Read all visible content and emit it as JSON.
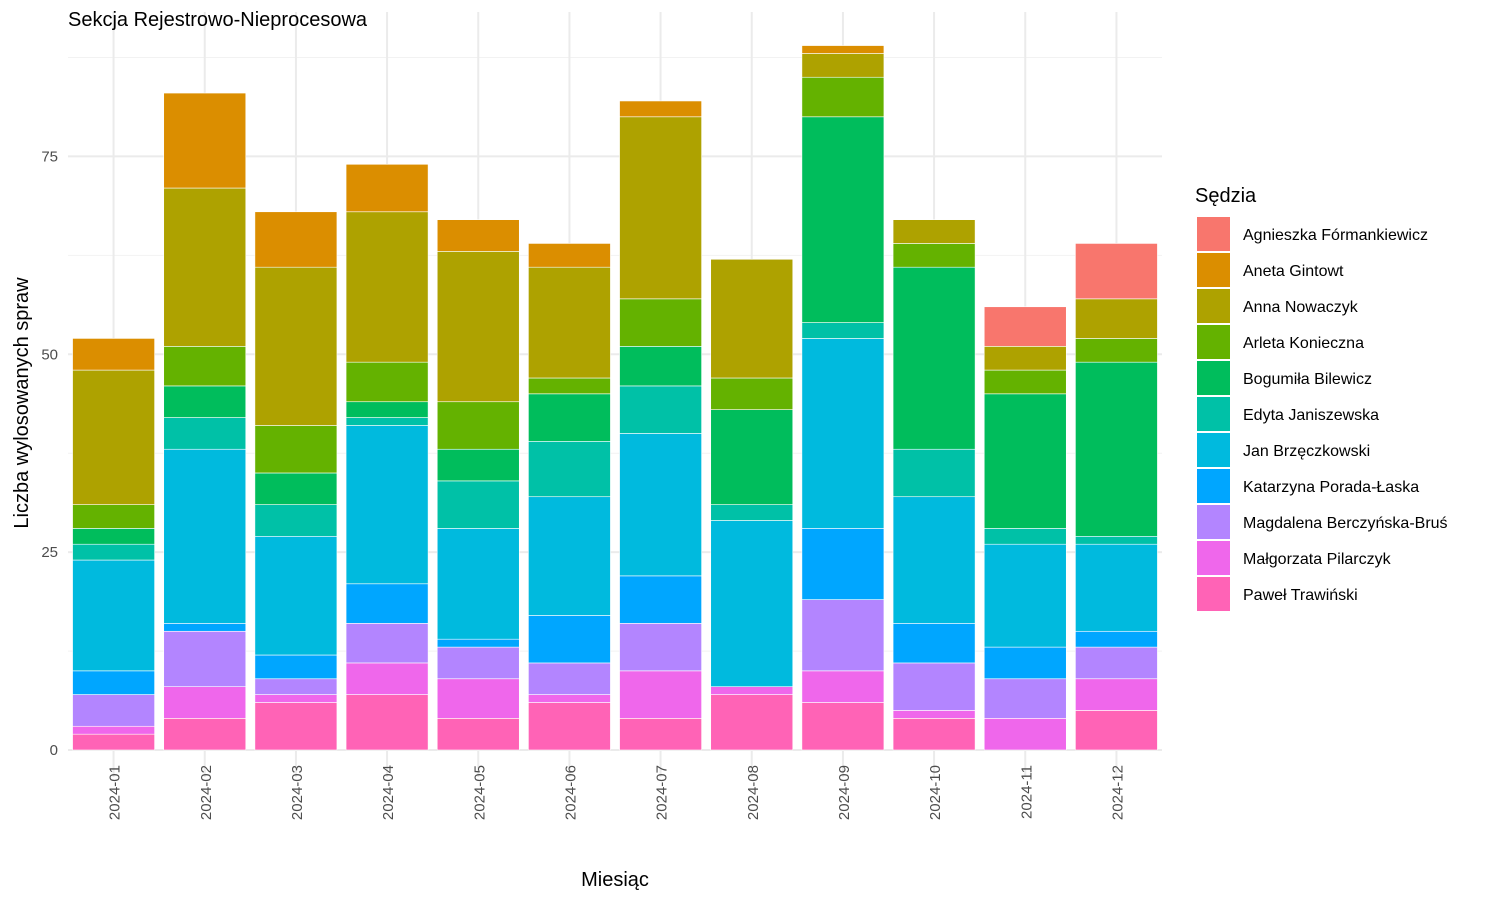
{
  "chart_data": {
    "type": "bar",
    "stacked": true,
    "title": "Sekcja Rejestrowo-Nieprocesowa",
    "xlabel": "Miesiąc",
    "ylabel": "Liczba wylosowanych spraw",
    "ylim": [
      0,
      90
    ],
    "yticks": [
      0,
      25,
      50,
      75
    ],
    "grid": true,
    "legend_title": "Sędzia",
    "legend_position": "right",
    "categories": [
      "2024-01",
      "2024-02",
      "2024-03",
      "2024-04",
      "2024-05",
      "2024-06",
      "2024-07",
      "2024-08",
      "2024-09",
      "2024-10",
      "2024-11",
      "2024-12"
    ],
    "series": [
      {
        "name": "Agnieszka Fórmankiewicz",
        "color": "#F8766D",
        "values": [
          0,
          0,
          0,
          0,
          0,
          0,
          0,
          0,
          0,
          0,
          5,
          7
        ]
      },
      {
        "name": "Aneta Gintowt",
        "color": "#DB8E00",
        "values": [
          4,
          12,
          7,
          6,
          4,
          3,
          2,
          0,
          1,
          0,
          0,
          0
        ]
      },
      {
        "name": "Anna Nowaczyk",
        "color": "#AEA200",
        "values": [
          17,
          20,
          20,
          19,
          19,
          14,
          23,
          15,
          3,
          3,
          3,
          5
        ]
      },
      {
        "name": "Arleta Konieczna",
        "color": "#64B200",
        "values": [
          3,
          5,
          6,
          5,
          6,
          2,
          6,
          4,
          5,
          3,
          3,
          3
        ]
      },
      {
        "name": "Bogumiła Bilewicz",
        "color": "#00BD5C",
        "values": [
          2,
          4,
          4,
          2,
          4,
          6,
          5,
          12,
          26,
          23,
          17,
          22
        ]
      },
      {
        "name": "Edyta Janiszewska",
        "color": "#00C1A7",
        "values": [
          2,
          4,
          4,
          1,
          6,
          7,
          6,
          2,
          2,
          6,
          2,
          1
        ]
      },
      {
        "name": "Jan Brzęczkowski",
        "color": "#00BADE",
        "values": [
          14,
          22,
          15,
          20,
          14,
          15,
          18,
          21,
          24,
          16,
          13,
          11
        ]
      },
      {
        "name": "Katarzyna Porada-Łaska",
        "color": "#00A6FF",
        "values": [
          3,
          1,
          3,
          5,
          1,
          6,
          6,
          0,
          9,
          5,
          4,
          2
        ]
      },
      {
        "name": "Magdalena Berczyńska-Bruś",
        "color": "#B385FF",
        "values": [
          4,
          7,
          2,
          5,
          4,
          4,
          6,
          0,
          9,
          6,
          5,
          4
        ]
      },
      {
        "name": "Małgorzata Pilarczyk",
        "color": "#EF67EB",
        "values": [
          1,
          4,
          1,
          4,
          5,
          1,
          6,
          1,
          4,
          1,
          4,
          4
        ]
      },
      {
        "name": "Paweł Trawiński",
        "color": "#FF63B6",
        "values": [
          2,
          4,
          6,
          7,
          4,
          6,
          4,
          7,
          6,
          4,
          0,
          5
        ]
      }
    ]
  }
}
